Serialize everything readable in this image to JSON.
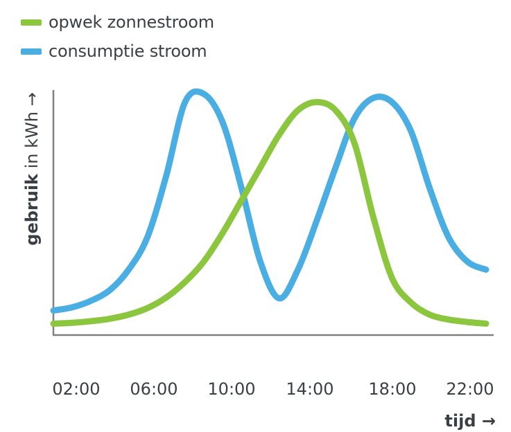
{
  "chart_data": {
    "type": "line",
    "x": [
      "00:00",
      "01:00",
      "02:00",
      "03:00",
      "04:00",
      "05:00",
      "06:00",
      "07:00",
      "08:00",
      "09:00",
      "10:00",
      "11:00",
      "12:00",
      "13:00",
      "14:00",
      "15:00",
      "16:00",
      "17:00",
      "18:00",
      "19:00",
      "20:00",
      "21:00",
      "22:00",
      "23:00"
    ],
    "x_ticks": [
      "02:00",
      "06:00",
      "10:00",
      "14:00",
      "18:00",
      "22:00"
    ],
    "series": [
      {
        "name": "opwek zonnestroom",
        "color": "#8cc63f",
        "values": [
          1.4,
          1.5,
          1.7,
          2.0,
          2.5,
          3.3,
          4.6,
          6.5,
          9.0,
          12.5,
          16.5,
          20.5,
          24.5,
          27.5,
          28.5,
          27.5,
          23.5,
          14.5,
          7.0,
          4.0,
          2.5,
          1.9,
          1.6,
          1.4
        ]
      },
      {
        "name": "consumptie stroom",
        "color": "#4aaee3",
        "values": [
          3.0,
          3.4,
          4.2,
          5.5,
          8.0,
          12.0,
          19.5,
          28.5,
          29.5,
          26.0,
          18.0,
          9.0,
          4.5,
          8.0,
          14.0,
          20.5,
          26.5,
          29.0,
          28.5,
          25.0,
          18.0,
          12.0,
          9.0,
          8.0
        ]
      }
    ],
    "xlabel": "tijd →",
    "ylabel_bold": "gebruik",
    "ylabel_rest": " in kWh →",
    "ylim": [
      0,
      31
    ],
    "grid": false,
    "legend_position": "top-left"
  }
}
